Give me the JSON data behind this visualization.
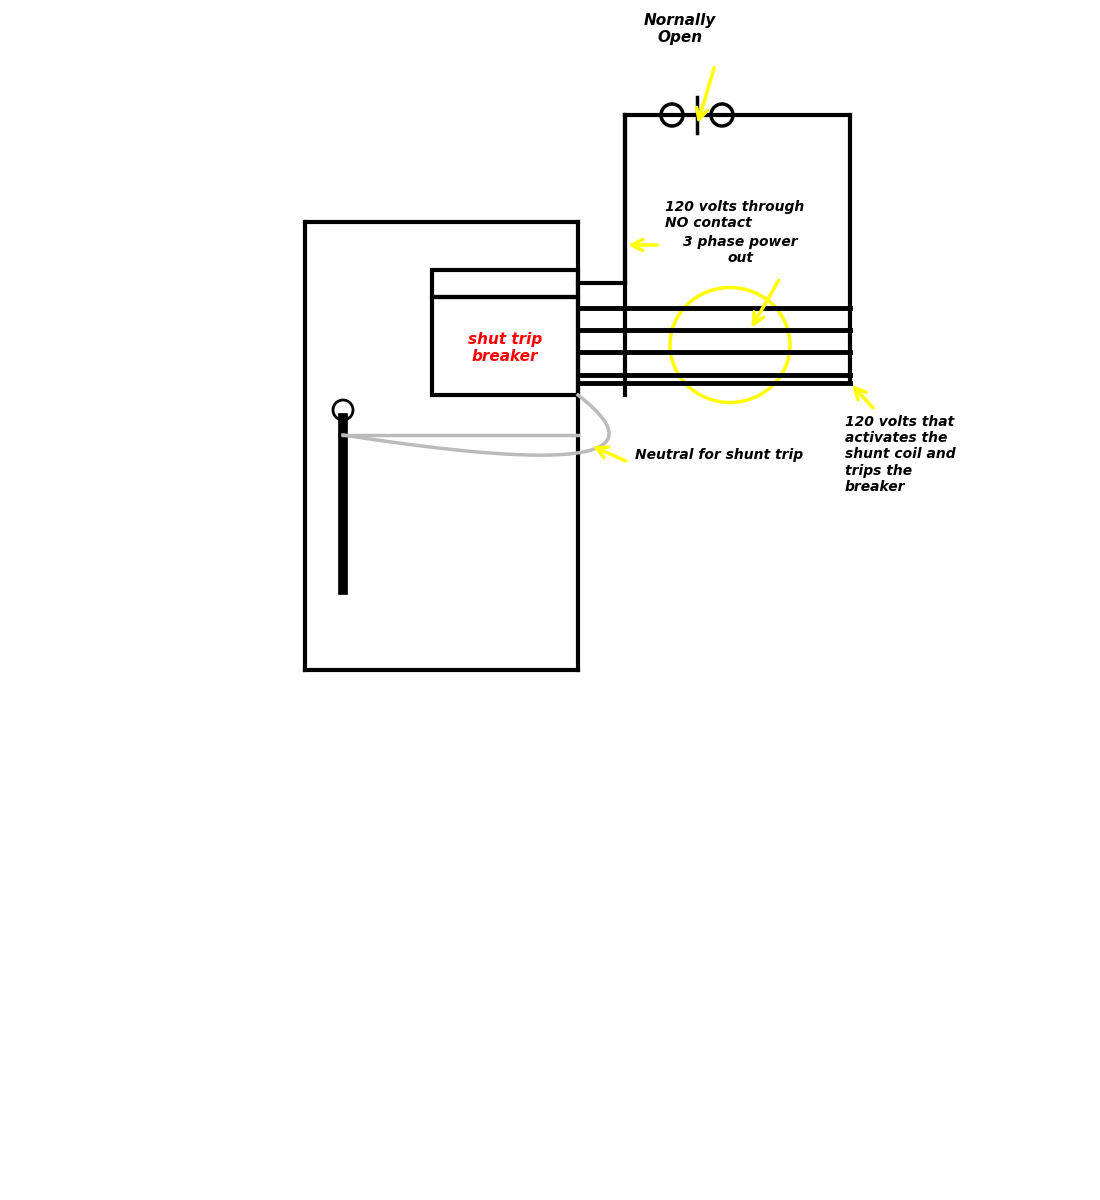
{
  "bg_color": "#ffffff",
  "line_color": "#000000",
  "gray_color": "#bbbbbb",
  "yellow_color": "#ffff00",
  "red_color": "#ff0000",
  "shunt_label": "shut trip\nbreaker",
  "no_contact_label": "Nornally\nOpen",
  "label_120v_no": "120 volts through\nNO contact",
  "label_3phase": "3 phase power\nout",
  "label_neutral": "Neutral for shunt trip",
  "label_120v_shunt": "120 volts that\nactivates the\nshunt coil and\ntrips the\nbreaker"
}
